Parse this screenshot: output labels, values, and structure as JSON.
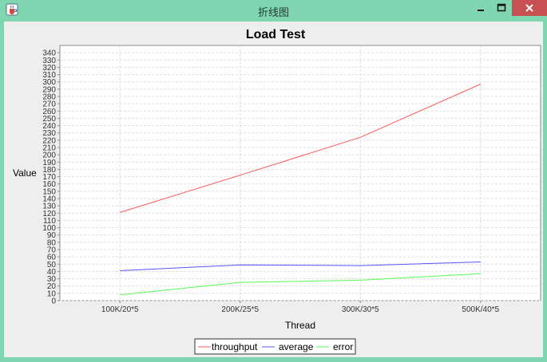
{
  "window": {
    "title": "折线图",
    "icons": {
      "app": "java-cup-icon",
      "minimize": "minimize-icon",
      "maximize": "maximize-icon",
      "close": "close-icon"
    },
    "colors": {
      "frame": "#7fd6b0",
      "close_button": "#c75050",
      "panel": "#eeeeee"
    }
  },
  "chart_data": {
    "type": "line",
    "title": "Load Test",
    "xlabel": "Thread",
    "ylabel": "Value",
    "categories": [
      "100K/20*5",
      "200K/25*5",
      "300K/30*5",
      "500K/40*5"
    ],
    "ylim": [
      0,
      350
    ],
    "yticks": [
      0,
      10,
      20,
      30,
      40,
      50,
      60,
      70,
      80,
      90,
      100,
      110,
      120,
      130,
      140,
      150,
      160,
      170,
      180,
      190,
      200,
      210,
      220,
      230,
      240,
      250,
      260,
      270,
      280,
      290,
      300,
      310,
      320,
      330,
      340
    ],
    "ytick_labels": [
      "0",
      "10",
      "20",
      "30",
      "40",
      "50",
      "60",
      "70",
      "80",
      "90",
      "100",
      "110",
      "120",
      "130",
      "140",
      "150",
      "160",
      "170",
      "180",
      "190",
      "200",
      "210",
      "220",
      "230",
      "240",
      "250",
      "260",
      "270",
      "280",
      "290",
      "300",
      "310",
      "320",
      "330",
      "340"
    ],
    "grid": true,
    "legend_position": "bottom",
    "series": [
      {
        "name": "throughput",
        "color": "#ff5555",
        "values": [
          121,
          172,
          224,
          297
        ]
      },
      {
        "name": "average",
        "color": "#5555ff",
        "values": [
          41,
          49,
          48,
          53
        ]
      },
      {
        "name": "error",
        "color": "#55ff55",
        "values": [
          8,
          25,
          28,
          37
        ]
      }
    ]
  }
}
